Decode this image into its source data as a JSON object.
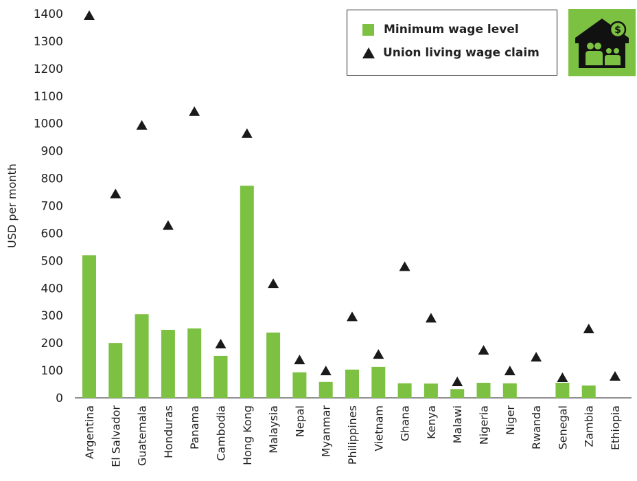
{
  "chart_data": {
    "type": "bar",
    "ylabel": "USD per month",
    "ylim": [
      0,
      1400
    ],
    "yticks": [
      0,
      100,
      200,
      300,
      400,
      500,
      600,
      700,
      800,
      900,
      1000,
      1100,
      1200,
      1300,
      1400
    ],
    "categories": [
      "Argentina",
      "El Salvador",
      "Guatemala",
      "Honduras",
      "Panama",
      "Cambodia",
      "Hong Kong",
      "Malaysia",
      "Nepal",
      "Myanmar",
      "Philippines",
      "Vietnam",
      "Ghana",
      "Kenya",
      "Malawi",
      "Nigeria",
      "Niger",
      "Rwanda",
      "Senegal",
      "Zambia",
      "Ethiopia"
    ],
    "series": [
      {
        "name": "Minimum wage level",
        "kind": "bar",
        "color": "#7dc143",
        "values": [
          520,
          200,
          305,
          248,
          253,
          153,
          773,
          238,
          93,
          58,
          103,
          113,
          53,
          52,
          32,
          55,
          53,
          null,
          55,
          45,
          null
        ]
      },
      {
        "name": "Union living wage claim",
        "kind": "marker",
        "marker": "triangle",
        "color": "#1a1a1a",
        "values": [
          1395,
          745,
          995,
          630,
          1045,
          198,
          965,
          418,
          140,
          100,
          297,
          160,
          480,
          292,
          60,
          175,
          100,
          150,
          75,
          253,
          80
        ]
      }
    ],
    "grid": false,
    "legend_position": "top-right"
  },
  "logo": {
    "icon": "house-family-dollar-icon",
    "bg": "#7dc143"
  }
}
